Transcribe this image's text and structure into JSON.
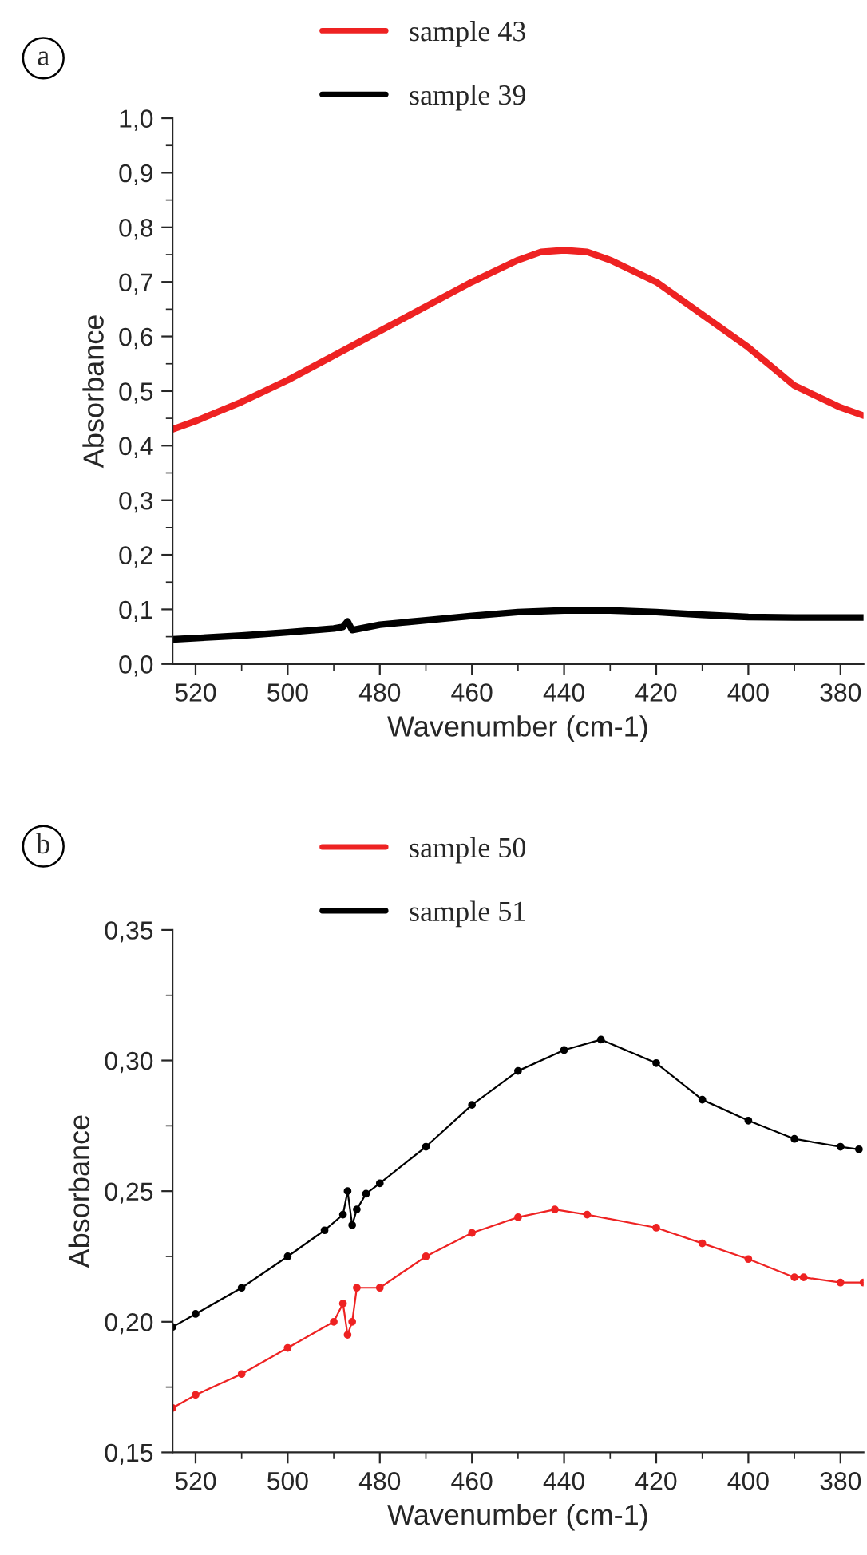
{
  "chart_data": [
    {
      "type": "line",
      "annotations": [
        "a"
      ],
      "xlabel": "Wavenumber (cm-1)",
      "ylabel": "Absorbance",
      "legend": "top",
      "marker": "none",
      "line_style": "solid",
      "grid": false,
      "xlim": [
        525,
        375
      ],
      "xticks": [
        520,
        500,
        480,
        460,
        440,
        420,
        400,
        380
      ],
      "ylim": [
        0,
        1.0
      ],
      "yticks": [
        {
          "value": 0,
          "label": "0,0"
        },
        {
          "value": 0.1,
          "label": "0,1"
        },
        {
          "value": 0.2,
          "label": "0,2"
        },
        {
          "value": 0.3,
          "label": "0,3"
        },
        {
          "value": 0.4,
          "label": "0,4"
        },
        {
          "value": 0.5,
          "label": "0,5"
        },
        {
          "value": 0.6,
          "label": "0,6"
        },
        {
          "value": 0.7,
          "label": "0,7"
        },
        {
          "value": 0.8,
          "label": "0,8"
        },
        {
          "value": 0.9,
          "label": "0,9"
        },
        {
          "value": 1.0,
          "label": "1,0"
        }
      ],
      "series": [
        {
          "name": "sample 43",
          "color": "#ee2222",
          "x": [
            525,
            520,
            510,
            500,
            490,
            480,
            470,
            460,
            450,
            445,
            440,
            435,
            430,
            420,
            410,
            400,
            395,
            390,
            385,
            380,
            375
          ],
          "values": [
            0.43,
            0.445,
            0.48,
            0.52,
            0.565,
            0.61,
            0.655,
            0.7,
            0.74,
            0.755,
            0.758,
            0.755,
            0.74,
            0.7,
            0.64,
            0.58,
            0.545,
            0.51,
            0.49,
            0.47,
            0.455
          ]
        },
        {
          "name": "sample 39",
          "color": "#000000",
          "x": [
            525,
            510,
            500,
            490,
            488,
            487,
            486,
            480,
            470,
            460,
            450,
            440,
            430,
            420,
            410,
            400,
            390,
            380,
            375
          ],
          "values": [
            0.045,
            0.052,
            0.058,
            0.065,
            0.068,
            0.078,
            0.062,
            0.072,
            0.08,
            0.088,
            0.095,
            0.098,
            0.098,
            0.095,
            0.09,
            0.086,
            0.085,
            0.085,
            0.085
          ]
        }
      ]
    },
    {
      "type": "line",
      "annotations": [
        "b"
      ],
      "xlabel": "Wavenumber (cm-1)",
      "ylabel": "Absorbance",
      "legend": "top",
      "marker": "circle",
      "line_style": "solid",
      "grid": false,
      "xlim": [
        525,
        375
      ],
      "xticks": [
        520,
        500,
        480,
        460,
        440,
        420,
        400,
        380
      ],
      "ylim": [
        0.15,
        0.35
      ],
      "yticks": [
        {
          "value": 0.15,
          "label": "0,15"
        },
        {
          "value": 0.2,
          "label": "0,20"
        },
        {
          "value": 0.25,
          "label": "0,25"
        },
        {
          "value": 0.3,
          "label": "0,30"
        },
        {
          "value": 0.35,
          "label": "0,35"
        }
      ],
      "series": [
        {
          "name": "sample 50",
          "color": "#ee2222",
          "x": [
            525,
            520,
            510,
            500,
            490,
            488,
            487,
            486,
            485,
            480,
            470,
            460,
            450,
            442,
            435,
            420,
            410,
            400,
            390,
            388,
            380,
            375
          ],
          "values": [
            0.167,
            0.172,
            0.18,
            0.19,
            0.2,
            0.207,
            0.195,
            0.2,
            0.213,
            0.213,
            0.225,
            0.234,
            0.24,
            0.243,
            0.241,
            0.236,
            0.23,
            0.224,
            0.217,
            0.217,
            0.215,
            0.215
          ]
        },
        {
          "name": "sample 51",
          "color": "#000000",
          "x": [
            525,
            520,
            510,
            500,
            492,
            488,
            487,
            486,
            485,
            483,
            480,
            470,
            460,
            450,
            440,
            432,
            420,
            410,
            400,
            390,
            380,
            376
          ],
          "values": [
            0.198,
            0.203,
            0.213,
            0.225,
            0.235,
            0.241,
            0.25,
            0.237,
            0.243,
            0.249,
            0.253,
            0.267,
            0.283,
            0.296,
            0.304,
            0.308,
            0.299,
            0.285,
            0.277,
            0.27,
            0.267,
            0.266
          ]
        }
      ]
    }
  ]
}
